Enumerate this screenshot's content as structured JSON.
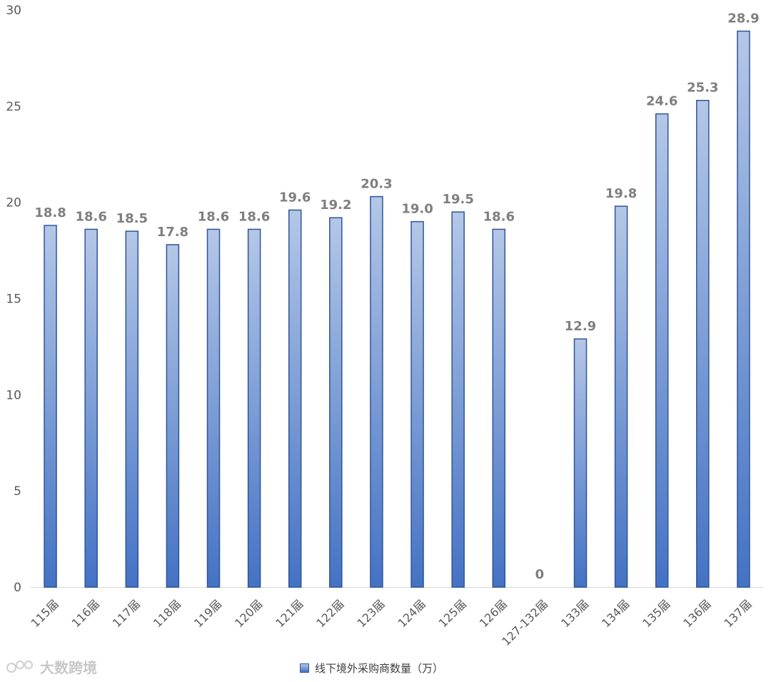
{
  "chart_data": {
    "type": "bar",
    "categories": [
      "115届",
      "116届",
      "117届",
      "118届",
      "119届",
      "120届",
      "121届",
      "122届",
      "123届",
      "124届",
      "125届",
      "126届",
      "127-132届",
      "133届",
      "134届",
      "135届",
      "136届",
      "137届"
    ],
    "series": [
      {
        "name": "线下境外采购商数量（万）",
        "values": [
          18.8,
          18.6,
          18.5,
          17.8,
          18.6,
          18.6,
          19.6,
          19.2,
          20.3,
          19.0,
          19.5,
          18.6,
          0,
          12.9,
          19.8,
          24.6,
          25.3,
          28.9
        ]
      }
    ],
    "data_labels": [
      "18.8",
      "18.6",
      "18.5",
      "17.8",
      "18.6",
      "18.6",
      "19.6",
      "19.2",
      "20.3",
      "19.0",
      "19.5",
      "18.6",
      "0",
      "12.9",
      "19.8",
      "24.6",
      "25.3",
      "28.9"
    ],
    "ylim": [
      0,
      30
    ],
    "yticks": [
      "0",
      "5",
      "10",
      "15",
      "20",
      "25",
      "30"
    ],
    "grid": false,
    "legend_position": "bottom",
    "colors": {
      "bar_top": "#b4c7e7",
      "bar_bottom": "#4472c4",
      "bar_border": "#2f5597",
      "label": "#7f7f7f",
      "axis_text": "#595959",
      "axis_line": "#d9d9d9"
    }
  },
  "legend": {
    "label": "线下境外采购商数量（万）"
  },
  "watermark": {
    "text": "大数跨境"
  }
}
